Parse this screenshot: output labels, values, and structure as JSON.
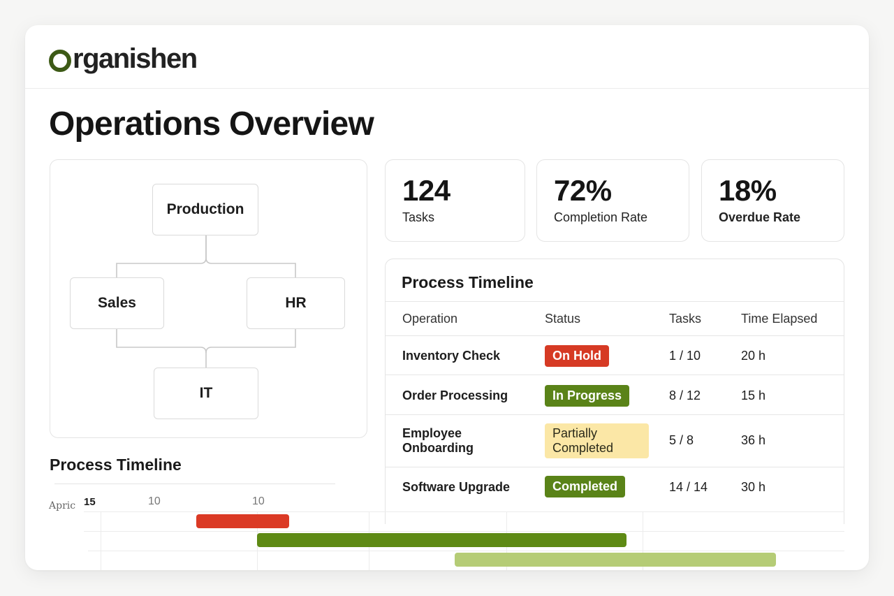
{
  "brand": {
    "name": "rganishen",
    "logo_icon": "o-ring-logo",
    "accent": "#3d5a16"
  },
  "page": {
    "title": "Operations Overview"
  },
  "org_chart": {
    "nodes": {
      "top": "Production",
      "left": "Sales",
      "right": "HR",
      "bottom": "IT"
    }
  },
  "stats": [
    {
      "value": "124",
      "label": "Tasks"
    },
    {
      "value": "72%",
      "label": "Completion Rate"
    },
    {
      "value": "18%",
      "label": "Overdue Rate"
    }
  ],
  "table": {
    "title": "Process Timeline",
    "headers": [
      "Operation",
      "Status",
      "Tasks",
      "Time Elapsed"
    ],
    "rows": [
      {
        "operation": "Inventory Check",
        "status": "On Hold",
        "tasks": "1 / 10",
        "time": "20 h"
      },
      {
        "operation": "Order Processing",
        "status": "In Progress",
        "tasks": "8 / 12",
        "time": "15 h"
      },
      {
        "operation_line1": "Employee",
        "operation_line2": "Onboarding",
        "status_line1": "Partially",
        "status_line2": "Completed",
        "tasks": "5 / 8",
        "time": "36 h"
      },
      {
        "operation": "Software Upgrade",
        "status": "Completed",
        "tasks": "14 / 14",
        "time": "30 h"
      }
    ]
  },
  "gantt": {
    "title": "Process Timeline",
    "month_label": "Apric",
    "day_labels": [
      "15",
      "10",
      "10"
    ],
    "colors": {
      "on_hold": "#db3a25",
      "in_progress": "#5e8a14",
      "completed": "#b5cc76"
    }
  }
}
